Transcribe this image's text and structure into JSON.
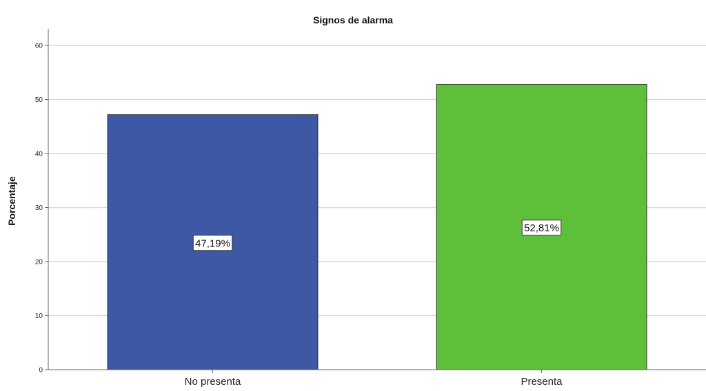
{
  "chart_data": {
    "type": "bar",
    "title": "Signos de alarma",
    "xlabel": "",
    "ylabel": "Porcentaje",
    "categories": [
      "No presenta",
      "Presenta"
    ],
    "values": [
      47.19,
      52.81
    ],
    "data_labels": [
      "47,19%",
      "52,81%"
    ],
    "colors": [
      "#3f58a6",
      "#5ec03a"
    ],
    "ylim": [
      0,
      63
    ],
    "yticks": [
      0,
      10,
      20,
      30,
      40,
      50,
      60
    ],
    "grid": true,
    "legend": "none"
  }
}
